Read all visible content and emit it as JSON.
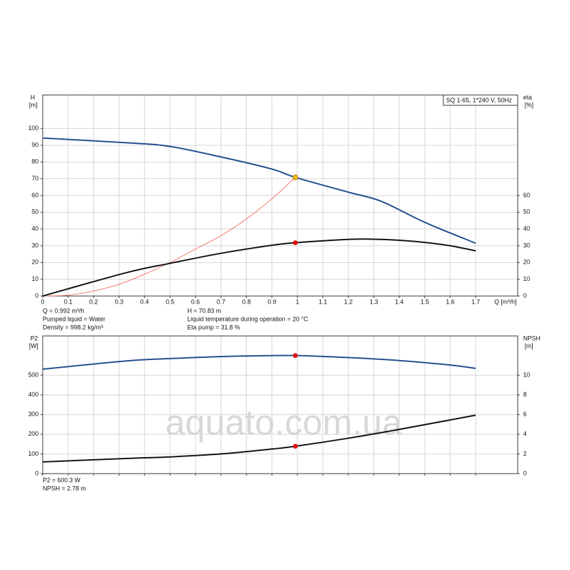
{
  "chart_data": [
    {
      "type": "line",
      "title": "SQ 1-65, 1*240 V, 50Hz",
      "ylabel": "H",
      "yunit": "[m]",
      "y2label": "eta",
      "y2unit": "[%]",
      "xlabel": "Q [m³/h]",
      "xlim": [
        0,
        1.865
      ],
      "ylim": [
        0,
        120
      ],
      "y2lim": [
        0,
        120
      ],
      "xticks": [
        0,
        0.1,
        0.2,
        0.3,
        0.4,
        0.5,
        0.6,
        0.7,
        0.8,
        0.9,
        1.0,
        1.1,
        1.2,
        1.3,
        1.4,
        1.5,
        1.6,
        1.7
      ],
      "yticks": [
        0,
        10,
        20,
        30,
        40,
        50,
        60,
        70,
        80,
        90,
        100
      ],
      "y2ticks": [
        0,
        10,
        20,
        30,
        40,
        50,
        60
      ],
      "grid": true,
      "series": [
        {
          "color": "#1f4e8c",
          "x": [
            0,
            0.33,
            0.5,
            0.7,
            0.9,
            0.992,
            1.2,
            1.33,
            1.5,
            1.7
          ],
          "values": [
            94.3,
            91.5,
            89.3,
            83,
            75.8,
            70.83,
            62,
            56.5,
            44,
            31.5
          ]
        },
        {
          "color": "#f07a6a",
          "x": [
            0,
            0.1,
            0.2,
            0.3,
            0.4,
            0.5,
            0.6,
            0.7,
            0.8,
            0.9,
            1.0
          ],
          "values": [
            0,
            0.5,
            3,
            7,
            13,
            20,
            28,
            36,
            46,
            58,
            72
          ]
        },
        {
          "color": "#111111",
          "axis": "y2",
          "x": [
            0,
            0.33,
            0.5,
            0.7,
            0.9,
            0.992,
            1.2,
            1.3,
            1.4,
            1.5,
            1.6,
            1.7
          ],
          "values": [
            0,
            14,
            19.5,
            25.5,
            30.3,
            31.8,
            33.8,
            33.9,
            33.3,
            32,
            30,
            27
          ]
        }
      ],
      "points": [
        {
          "x": 0.992,
          "value": 31.8,
          "color": "#e01010",
          "axis": "y2"
        },
        {
          "x": 0.992,
          "value": 70.83,
          "color": "#f5c518"
        }
      ],
      "annotations": [
        "Q = 0.992 m³/h",
        "Pumped liquid = Water",
        "Density = 998.2 kg/m³",
        "H = 70.83 m",
        "Liquid temperature during operation = 20 °C",
        "Eta pump = 31.8 %"
      ]
    },
    {
      "type": "line",
      "ylabel": "P2",
      "yunit": "[W]",
      "y2label": "NPSH",
      "y2unit": "[m]",
      "xlim": [
        0,
        1.865
      ],
      "ylim": [
        0,
        700
      ],
      "y2lim": [
        0,
        14
      ],
      "xticks": [
        0,
        0.1,
        0.2,
        0.3,
        0.4,
        0.5,
        0.6,
        0.7,
        0.8,
        0.9,
        1.0,
        1.1,
        1.2,
        1.3,
        1.4,
        1.5,
        1.6,
        1.7
      ],
      "yticks": [
        0,
        100,
        200,
        300,
        400,
        500
      ],
      "y2ticks": [
        0,
        2,
        4,
        6,
        8,
        10
      ],
      "grid": true,
      "series": [
        {
          "color": "#1f4e8c",
          "x": [
            0,
            0.33,
            0.5,
            0.7,
            0.8,
            0.992,
            1.2,
            1.4,
            1.6,
            1.7
          ],
          "values": [
            531,
            573,
            585,
            595,
            598,
            600.3,
            590,
            575,
            552,
            535
          ]
        },
        {
          "color": "#111111",
          "axis": "y2",
          "x": [
            0,
            0.33,
            0.5,
            0.7,
            0.9,
            0.992,
            1.2,
            1.4,
            1.7
          ],
          "values": [
            1.19,
            1.54,
            1.7,
            2.0,
            2.5,
            2.78,
            3.6,
            4.5,
            5.94
          ]
        }
      ],
      "points": [
        {
          "x": 0.992,
          "value": 600.3,
          "color": "#e01010"
        },
        {
          "x": 0.992,
          "value": 2.78,
          "color": "#e01010",
          "axis": "y2"
        }
      ],
      "annotations": [
        "P2 = 600.3 W",
        "NPSH = 2.78 m"
      ],
      "watermark": "aquato.com.ua"
    }
  ]
}
